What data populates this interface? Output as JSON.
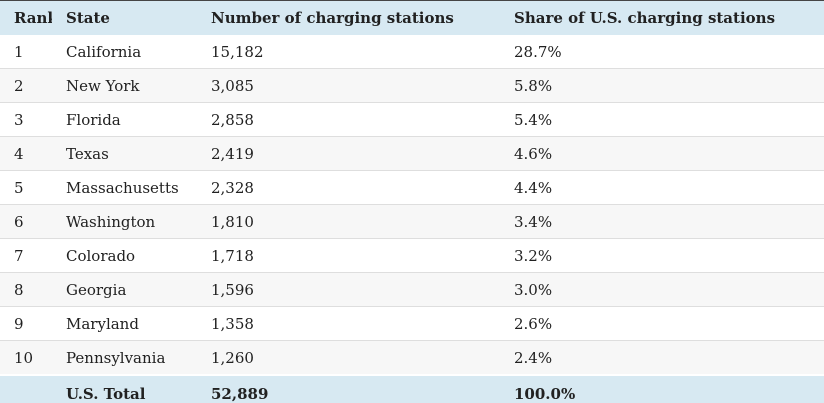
{
  "chart_data": {
    "type": "table",
    "columns": [
      "Rank",
      "State",
      "Number of charging stations",
      "Share of U.S. charging stations"
    ],
    "rows": [
      {
        "rank": "1",
        "state": "California",
        "stations": "15,182",
        "share": "28.7%"
      },
      {
        "rank": "2",
        "state": "New York",
        "stations": "3,085",
        "share": "5.8%"
      },
      {
        "rank": "3",
        "state": "Florida",
        "stations": "2,858",
        "share": "5.4%"
      },
      {
        "rank": "4",
        "state": "Texas",
        "stations": "2,419",
        "share": "4.6%"
      },
      {
        "rank": "5",
        "state": "Massachusetts",
        "stations": "2,328",
        "share": "4.4%"
      },
      {
        "rank": "6",
        "state": "Washington",
        "stations": "1,810",
        "share": "3.4%"
      },
      {
        "rank": "7",
        "state": "Colorado",
        "stations": "1,718",
        "share": "3.2%"
      },
      {
        "rank": "8",
        "state": "Georgia",
        "stations": "1,596",
        "share": "3.0%"
      },
      {
        "rank": "9",
        "state": "Maryland",
        "stations": "1,358",
        "share": "2.6%"
      },
      {
        "rank": "10",
        "state": "Pennsylvania",
        "stations": "1,260",
        "share": "2.4%"
      }
    ],
    "total_row": {
      "rank": "",
      "state": "U.S. Total",
      "stations": "52,889",
      "share": "100.0%"
    }
  },
  "colors": {
    "header_bg": "#d7e9f2",
    "alt_row_bg": "#f7f7f7",
    "row_border": "#dedede",
    "frame_border": "#454545",
    "total_divider": "#ffffff",
    "text": "#212121"
  }
}
